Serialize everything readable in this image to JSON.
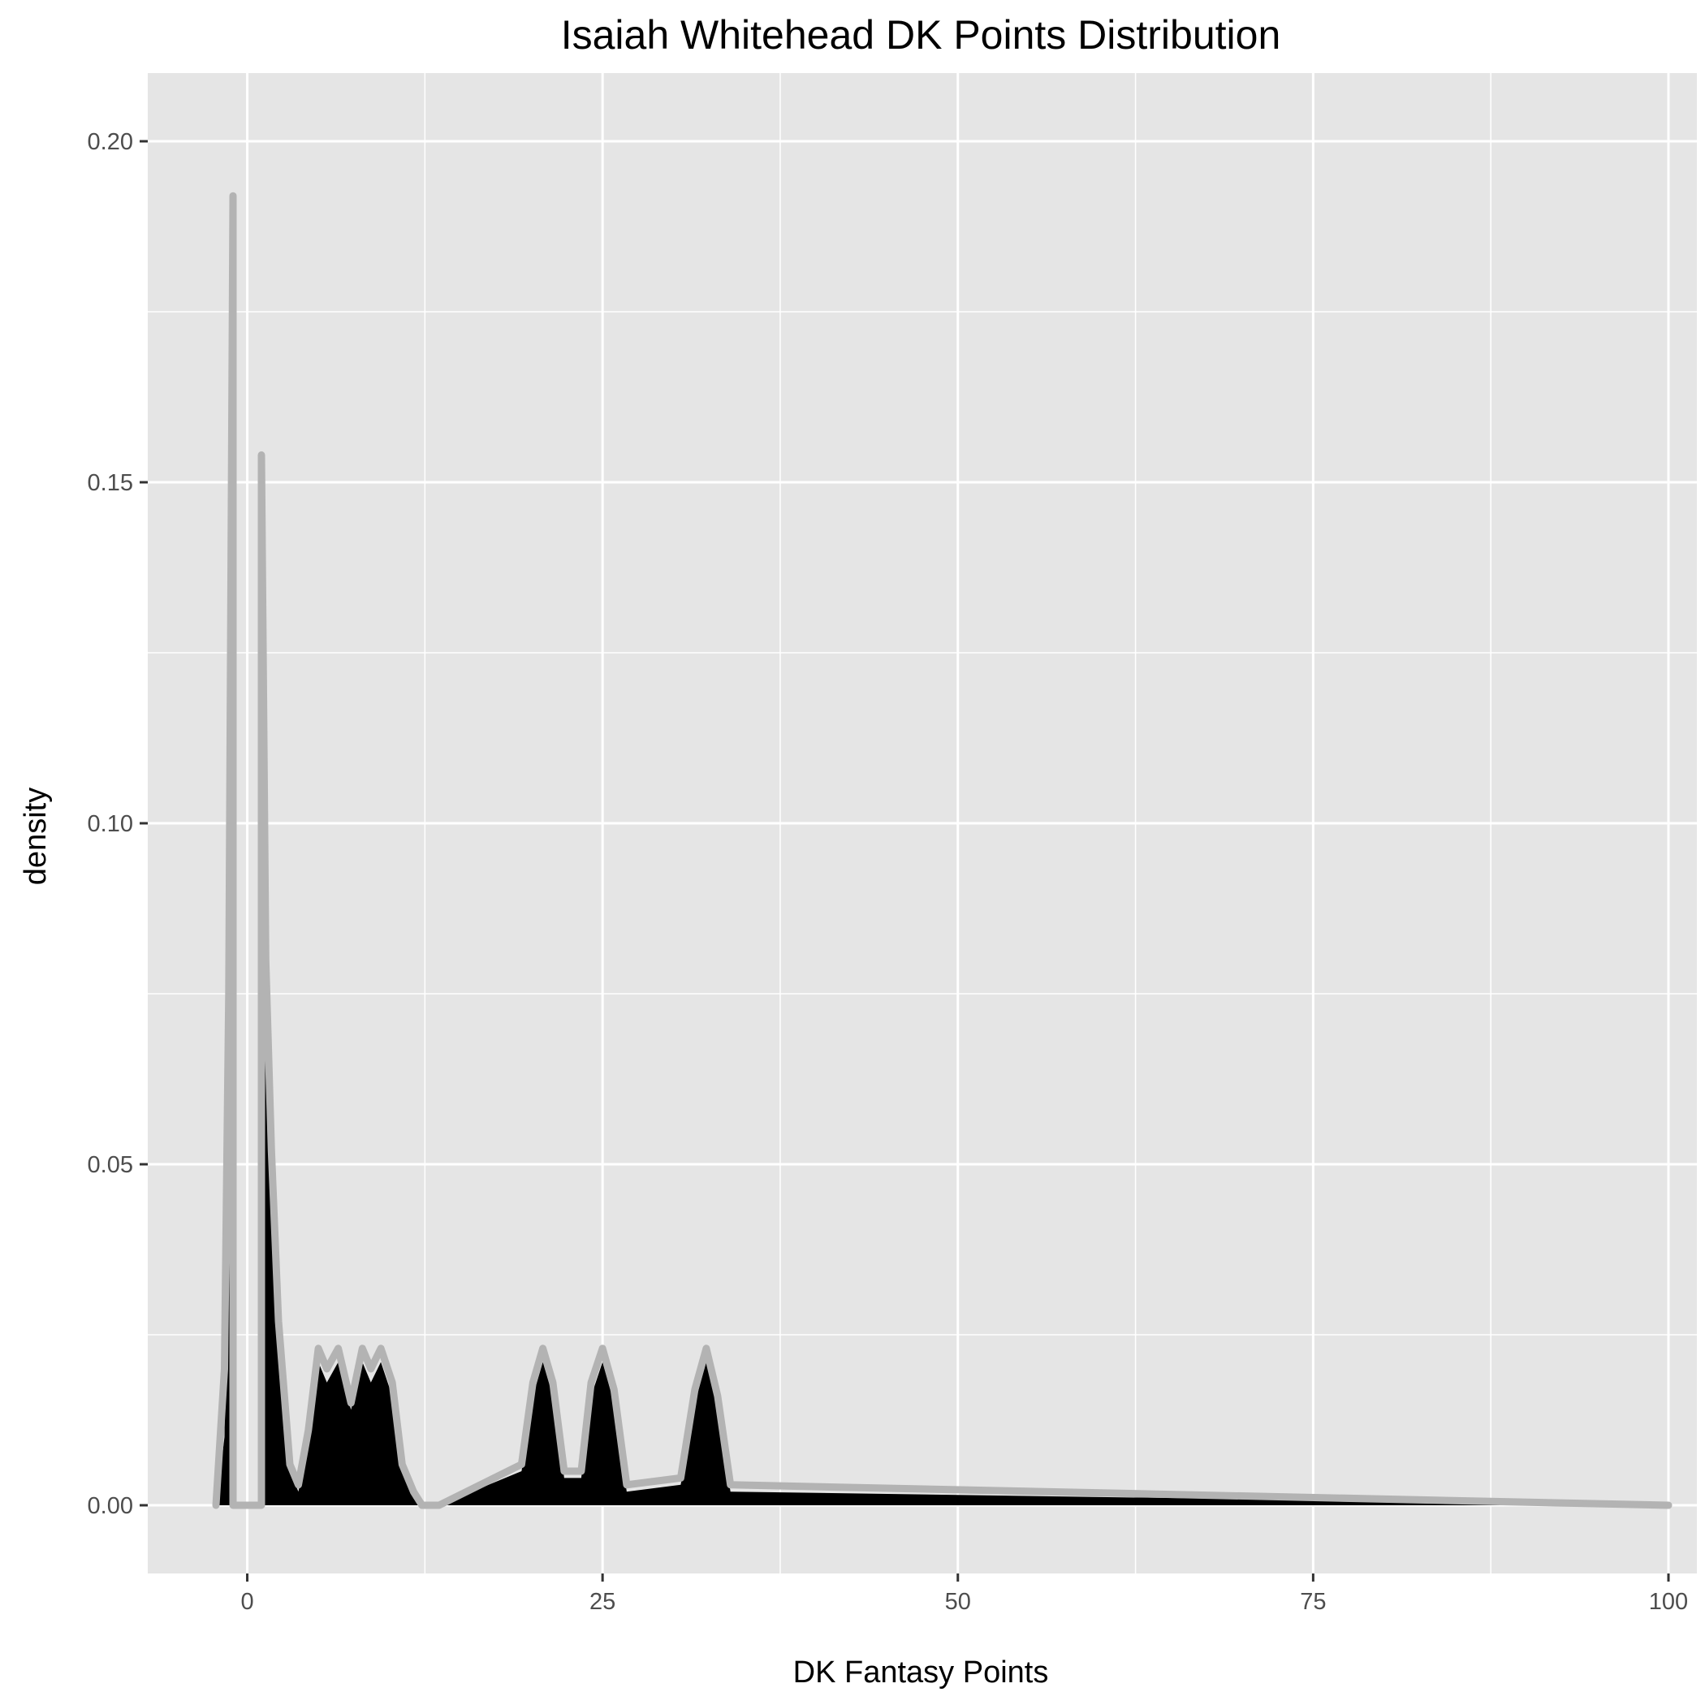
{
  "chart_data": {
    "type": "area",
    "title": "Isaiah Whitehead DK Points Distribution",
    "xlabel": "DK Fantasy Points",
    "ylabel": "density",
    "xlim": [
      -7,
      102
    ],
    "ylim": [
      -0.01,
      0.21
    ],
    "x_ticks": [
      0,
      25,
      50,
      75,
      100
    ],
    "x_tick_labels": [
      "0",
      "25",
      "50",
      "75",
      "100"
    ],
    "y_ticks": [
      0.0,
      0.05,
      0.1,
      0.15,
      0.2
    ],
    "y_tick_labels": [
      "0.00",
      "0.05",
      "0.10",
      "0.15",
      "0.20"
    ],
    "grid": true,
    "colors": {
      "panel_background": "#e5e5e5",
      "grid_line": "#ffffff",
      "fill": "#000000",
      "outline": "#b3b3b3"
    },
    "fill_series": {
      "x": [
        -2.2,
        -2.0,
        -1.6,
        -1.3,
        -1.0,
        -1.0,
        1.0,
        1.0,
        1.3,
        1.7,
        2.2,
        3.0,
        3.6,
        4.3,
        5.0,
        5.6,
        6.4,
        7.3,
        8.1,
        8.7,
        9.4,
        10.2,
        10.9,
        11.7,
        12.3,
        13.5,
        19.3,
        20.1,
        20.8,
        21.5,
        22.3,
        23.5,
        24.2,
        25.0,
        25.8,
        26.7,
        30.5,
        31.5,
        32.3,
        33.1,
        34.0,
        100
      ],
      "y": [
        0.0,
        0.003,
        0.01,
        0.052,
        0.0,
        0.0,
        0.0,
        0.05,
        0.068,
        0.05,
        0.025,
        0.005,
        0.002,
        0.009,
        0.021,
        0.018,
        0.021,
        0.014,
        0.021,
        0.018,
        0.021,
        0.016,
        0.005,
        0.001,
        0.0,
        0.0,
        0.005,
        0.016,
        0.021,
        0.016,
        0.004,
        0.004,
        0.016,
        0.021,
        0.015,
        0.002,
        0.003,
        0.015,
        0.021,
        0.014,
        0.002,
        0.0
      ]
    },
    "outline_series": {
      "x": [
        -2.2,
        -1.6,
        -1.3,
        -1.0,
        -1.0,
        1.0,
        1.0,
        1.3,
        1.7,
        2.2,
        3.0,
        3.6,
        4.3,
        5.0,
        5.6,
        6.4,
        7.3,
        8.1,
        8.7,
        9.4,
        10.2,
        10.9,
        11.7,
        12.3,
        13.5,
        19.3,
        20.1,
        20.8,
        21.5,
        22.3,
        23.5,
        24.2,
        25.0,
        25.8,
        26.7,
        30.5,
        31.5,
        32.3,
        33.1,
        34.0,
        100
      ],
      "y": [
        0.0,
        0.02,
        0.075,
        0.192,
        0.0,
        0.0,
        0.154,
        0.08,
        0.052,
        0.027,
        0.006,
        0.003,
        0.011,
        0.023,
        0.02,
        0.023,
        0.015,
        0.023,
        0.02,
        0.023,
        0.018,
        0.006,
        0.002,
        0.0,
        0.0,
        0.006,
        0.018,
        0.023,
        0.018,
        0.005,
        0.005,
        0.018,
        0.023,
        0.017,
        0.003,
        0.004,
        0.017,
        0.023,
        0.016,
        0.003,
        0.0
      ]
    }
  }
}
